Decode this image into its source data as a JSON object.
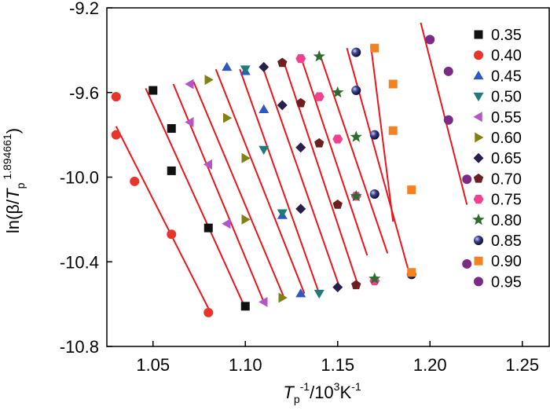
{
  "chart_data": {
    "type": "scatter",
    "title": "",
    "xlabel": "T_p^-1/10^3K^-1",
    "ylabel": "ln(β/T_p^1.894661)",
    "xlabel_parts": {
      "main": "T",
      "sub": "p",
      "sup1": "-1",
      "mid": "/10",
      "sup2": "3",
      "unit": "K",
      "sup3": "-1"
    },
    "ylabel_parts": {
      "pre": "ln(β/",
      "main": "T",
      "sub": "p",
      "sup": "1.894661",
      "post": ")"
    },
    "xlim": [
      1.025,
      1.265
    ],
    "ylim": [
      -10.8,
      -9.2
    ],
    "xticks": [
      "1.05",
      "1.10",
      "1.15",
      "1.20",
      "1.25"
    ],
    "xtick_values": [
      1.05,
      1.1,
      1.15,
      1.2,
      1.25
    ],
    "yticks": [
      "-9.2",
      "-9.6",
      "-10.0",
      "-10.4",
      "-10.8"
    ],
    "ytick_values": [
      -9.2,
      -9.6,
      -10.0,
      -10.4,
      -10.8
    ],
    "legend_position": "right",
    "fit_color": "#e8161d",
    "series": [
      {
        "name": "0.35",
        "marker": "square",
        "color": "#111111",
        "x": [
          1.05,
          1.06,
          1.06,
          1.08,
          1.1
        ],
        "y": [
          -9.59,
          -9.77,
          -9.97,
          -10.24,
          -10.61
        ]
      },
      {
        "name": "0.40",
        "marker": "circle",
        "color": "#e8352b",
        "x": [
          1.03,
          1.03,
          1.04,
          1.06,
          1.08
        ],
        "y": [
          -9.62,
          -9.8,
          -10.02,
          -10.27,
          -10.64
        ]
      },
      {
        "name": "0.45",
        "marker": "triangle-up",
        "color": "#2e57c4",
        "x": [
          1.09,
          1.1,
          1.11,
          1.12,
          1.13
        ],
        "y": [
          -9.48,
          -9.5,
          -9.68,
          -10.18,
          -10.55
        ]
      },
      {
        "name": "0.50",
        "marker": "triangle-down",
        "color": "#1f7a7a",
        "x": [
          1.1,
          1.11,
          1.12,
          1.14
        ],
        "y": [
          -9.49,
          -9.87,
          -10.17,
          -10.55
        ]
      },
      {
        "name": "0.55",
        "marker": "triangle-left",
        "color": "#b455c8",
        "x": [
          1.07,
          1.07,
          1.08,
          1.09,
          1.11
        ],
        "y": [
          -9.56,
          -9.74,
          -9.94,
          -10.22,
          -10.59
        ]
      },
      {
        "name": "0.60",
        "marker": "triangle-right",
        "color": "#808015",
        "x": [
          1.08,
          1.09,
          1.1,
          1.1,
          1.12
        ],
        "y": [
          -9.54,
          -9.72,
          -9.91,
          -10.2,
          -10.57
        ]
      },
      {
        "name": "0.65",
        "marker": "diamond",
        "color": "#2a1f4a",
        "x": [
          1.11,
          1.12,
          1.13,
          1.13,
          1.15
        ],
        "y": [
          -9.48,
          -9.66,
          -9.86,
          -10.15,
          -10.52
        ]
      },
      {
        "name": "0.70",
        "marker": "pentagon",
        "color": "#6b1f1f",
        "x": [
          1.12,
          1.13,
          1.14,
          1.15,
          1.16
        ],
        "y": [
          -9.46,
          -9.65,
          -9.84,
          -10.13,
          -10.51
        ]
      },
      {
        "name": "0.75",
        "marker": "hexagon",
        "color": "#f0418f",
        "x": [
          1.13,
          1.14,
          1.15,
          1.16,
          1.17
        ],
        "y": [
          -9.44,
          -9.62,
          -9.82,
          -10.09,
          -10.49
        ]
      },
      {
        "name": "0.80",
        "marker": "star",
        "color": "#2f6b2f",
        "x": [
          1.14,
          1.15,
          1.16,
          1.16,
          1.17
        ],
        "y": [
          -9.43,
          -9.6,
          -9.81,
          -10.09,
          -10.48
        ]
      },
      {
        "name": "0.85",
        "marker": "sphere",
        "color": "#2a2a6e",
        "x": [
          1.16,
          1.16,
          1.17,
          1.17,
          1.19
        ],
        "y": [
          -9.41,
          -9.59,
          -9.8,
          -10.08,
          -10.46
        ]
      },
      {
        "name": "0.90",
        "marker": "square",
        "color": "#f58220",
        "x": [
          1.17,
          1.18,
          1.18,
          1.19,
          1.19
        ],
        "y": [
          -9.39,
          -9.56,
          -9.78,
          -10.06,
          -10.45
        ]
      },
      {
        "name": "0.95",
        "marker": "circle",
        "color": "#7b2b86",
        "x": [
          1.2,
          1.21,
          1.21,
          1.22,
          1.22
        ],
        "y": [
          -9.35,
          -9.5,
          -9.73,
          -10.01,
          -10.41
        ]
      }
    ],
    "fit_lines": [
      {
        "name": "0.35",
        "x": [
          1.046,
          1.1
        ],
        "y": [
          -9.58,
          -10.62
        ]
      },
      {
        "name": "0.40",
        "x": [
          1.03,
          1.08
        ],
        "y": [
          -9.76,
          -10.62
        ]
      },
      {
        "name": "0.45",
        "x": [
          1.084,
          1.132
        ],
        "y": [
          -9.49,
          -10.55
        ]
      },
      {
        "name": "0.50",
        "x": [
          1.097,
          1.14
        ],
        "y": [
          -9.49,
          -10.55
        ]
      },
      {
        "name": "0.55",
        "x": [
          1.061,
          1.11
        ],
        "y": [
          -9.56,
          -10.59
        ]
      },
      {
        "name": "0.60",
        "x": [
          1.072,
          1.121
        ],
        "y": [
          -9.55,
          -10.57
        ]
      },
      {
        "name": "0.65",
        "x": [
          1.109,
          1.151
        ],
        "y": [
          -9.47,
          -10.52
        ]
      },
      {
        "name": "0.70",
        "x": [
          1.121,
          1.161
        ],
        "y": [
          -9.46,
          -10.51
        ]
      },
      {
        "name": "0.75",
        "x": [
          1.13,
          1.166
        ],
        "y": [
          -9.43,
          -10.37
        ]
      },
      {
        "name": "0.80",
        "x": [
          1.14,
          1.177
        ],
        "y": [
          -9.41,
          -10.36
        ]
      },
      {
        "name": "0.85",
        "x": [
          1.155,
          1.188
        ],
        "y": [
          -9.39,
          -10.43
        ]
      },
      {
        "name": "0.90",
        "x": [
          1.168,
          1.18
        ],
        "y": [
          -9.38,
          -10.21
        ]
      },
      {
        "name": "0.95",
        "x": [
          1.195,
          1.22
        ],
        "y": [
          -9.27,
          -10.13
        ]
      }
    ]
  }
}
